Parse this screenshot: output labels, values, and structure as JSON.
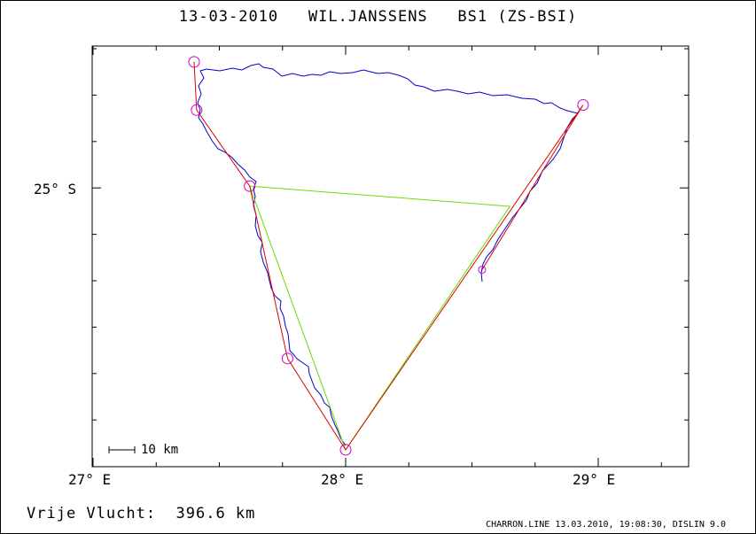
{
  "title": "13-03-2010   WIL.JANSSENS   BS1 (ZS-BSI)",
  "x_ticks": [
    "27° E",
    "28° E",
    "29° E"
  ],
  "y_ticks": [
    "25° S"
  ],
  "scale_label": "10 km",
  "distance_label": "Vrije Vlucht:  396.6 km",
  "footer": "CHARRON.LINE 13.03.2010, 19:08:30, DISLIN 9.0",
  "colors": {
    "track": "#0000cc",
    "route": "#dd0000",
    "triangle": "#66dd00",
    "turnpoint": "#cc00cc"
  },
  "turnpoints": [
    {
      "lon": 27.4,
      "lat": -24.5
    },
    {
      "lon": 27.41,
      "lat": -24.69
    },
    {
      "lon": 27.62,
      "lat": -24.99
    },
    {
      "lon": 27.77,
      "lat": -25.67
    },
    {
      "lon": 28.0,
      "lat": -26.03
    },
    {
      "lon": 28.94,
      "lat": -24.67
    },
    {
      "lon": 28.54,
      "lat": -25.32
    }
  ],
  "triangle_points": [
    {
      "lon": 27.62,
      "lat": -24.99
    },
    {
      "lon": 28.65,
      "lat": -25.07
    },
    {
      "lon": 28.0,
      "lat": -26.03
    }
  ]
}
